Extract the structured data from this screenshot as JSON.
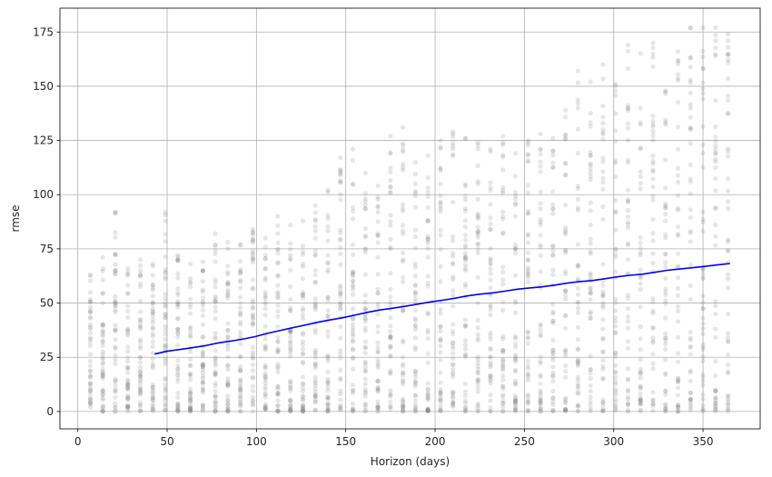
{
  "chart_data": {
    "type": "scatter",
    "title": "",
    "xlabel": "Horizon (days)",
    "ylabel": "rmse",
    "xlim": [
      -10,
      382
    ],
    "ylim": [
      -8,
      186
    ],
    "xticks": [
      0,
      50,
      100,
      150,
      200,
      250,
      300,
      350
    ],
    "yticks": [
      0,
      25,
      50,
      75,
      100,
      125,
      150,
      175
    ],
    "grid": true,
    "scatter_color": "#808080",
    "line_color": "#0000ff",
    "line": {
      "x": [
        43,
        50,
        57,
        64,
        71,
        78,
        85,
        92,
        99,
        106,
        113,
        120,
        127,
        134,
        141,
        148,
        155,
        162,
        169,
        176,
        183,
        190,
        197,
        204,
        211,
        218,
        225,
        232,
        239,
        246,
        253,
        260,
        267,
        274,
        281,
        288,
        295,
        302,
        309,
        316,
        323,
        330,
        337,
        344,
        351,
        358,
        365
      ],
      "y": [
        26.5,
        27.8,
        28.6,
        29.4,
        30.3,
        31.5,
        32.4,
        33.3,
        34.5,
        36.0,
        37.3,
        38.6,
        39.8,
        41.1,
        42.2,
        43.2,
        44.4,
        45.7,
        46.8,
        47.6,
        48.5,
        49.5,
        50.5,
        51.3,
        52.2,
        53.3,
        54.1,
        54.7,
        55.5,
        56.4,
        57.0,
        57.5,
        58.3,
        59.2,
        59.9,
        60.4,
        61.2,
        62.1,
        62.8,
        63.3,
        64.2,
        65.1,
        65.7,
        66.3,
        66.9,
        67.6,
        68.2
      ]
    },
    "scatter_x": [
      7,
      14,
      21,
      28,
      35,
      42,
      49,
      56,
      63,
      70,
      77,
      84,
      91,
      98,
      105,
      112,
      119,
      126,
      133,
      140,
      147,
      154,
      161,
      168,
      175,
      182,
      189,
      196,
      203,
      210,
      217,
      224,
      231,
      238,
      245,
      252,
      259,
      266,
      273,
      280,
      287,
      294,
      301,
      308,
      315,
      322,
      329,
      336,
      343,
      350,
      357,
      364
    ],
    "scatter_spread": [
      [
        0,
        63
      ],
      [
        0,
        71
      ],
      [
        0,
        92
      ],
      [
        0,
        66
      ],
      [
        0,
        70
      ],
      [
        0,
        68
      ],
      [
        0,
        92
      ],
      [
        0,
        72
      ],
      [
        0,
        68
      ],
      [
        0,
        69
      ],
      [
        0,
        82
      ],
      [
        0,
        78
      ],
      [
        0,
        77
      ],
      [
        0,
        84
      ],
      [
        0,
        80
      ],
      [
        0,
        90
      ],
      [
        0,
        86
      ],
      [
        0,
        88
      ],
      [
        0,
        95
      ],
      [
        0,
        102
      ],
      [
        0,
        117
      ],
      [
        0,
        121
      ],
      [
        0,
        110
      ],
      [
        0,
        104
      ],
      [
        0,
        127
      ],
      [
        0,
        131
      ],
      [
        0,
        115
      ],
      [
        0,
        118
      ],
      [
        0,
        125
      ],
      [
        0,
        129
      ],
      [
        0,
        126
      ],
      [
        0,
        124
      ],
      [
        0,
        121
      ],
      [
        0,
        127
      ],
      [
        0,
        119
      ],
      [
        0,
        125
      ],
      [
        0,
        128
      ],
      [
        0,
        126
      ],
      [
        0,
        139
      ],
      [
        0,
        157
      ],
      [
        0,
        152
      ],
      [
        0,
        160
      ],
      [
        0,
        151
      ],
      [
        0,
        169
      ],
      [
        0,
        165
      ],
      [
        0,
        170
      ],
      [
        0,
        148
      ],
      [
        0,
        166
      ],
      [
        0,
        177
      ],
      [
        0,
        177
      ],
      [
        0,
        177
      ],
      [
        0,
        174
      ]
    ]
  }
}
